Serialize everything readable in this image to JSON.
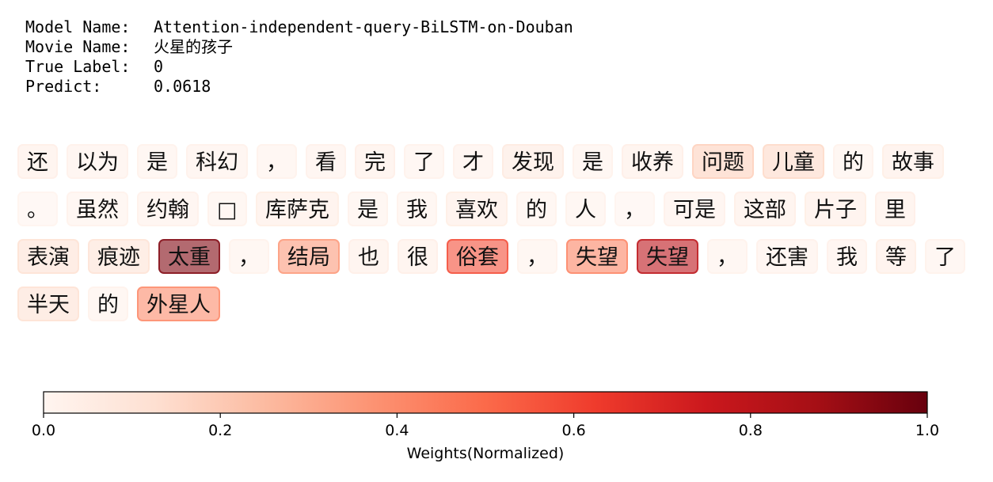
{
  "meta": {
    "model_name_key": "Model Name:",
    "model_name": "Attention-independent-query-BiLSTM-on-Douban",
    "movie_name_key": "Movie Name:",
    "movie_name": "火星的孩子",
    "true_label_key": "True Label:",
    "true_label": "0",
    "predict_key": "Predict:",
    "predict": "0.0618"
  },
  "chart_data": {
    "type": "heatmap",
    "colormap": "Reds",
    "colorbar": {
      "label": "Weights(Normalized)",
      "range": [
        0.0,
        1.0
      ],
      "ticks": [
        0.0,
        0.2,
        0.4,
        0.6,
        0.8,
        1.0
      ],
      "tick_labels": [
        "0.0",
        "0.2",
        "0.4",
        "0.6",
        "0.8",
        "1.0"
      ]
    },
    "tokens": [
      {
        "text": "还",
        "weight": 0.04
      },
      {
        "text": "以为",
        "weight": 0.03
      },
      {
        "text": "是",
        "weight": 0.02
      },
      {
        "text": "科幻",
        "weight": 0.03
      },
      {
        "text": "，",
        "weight": 0.02
      },
      {
        "text": "看",
        "weight": 0.03
      },
      {
        "text": "完",
        "weight": 0.04
      },
      {
        "text": "了",
        "weight": 0.02
      },
      {
        "text": "才",
        "weight": 0.03
      },
      {
        "text": "发现",
        "weight": 0.07
      },
      {
        "text": "是",
        "weight": 0.02
      },
      {
        "text": "收养",
        "weight": 0.04
      },
      {
        "text": "问题",
        "weight": 0.18
      },
      {
        "text": "儿童",
        "weight": 0.15
      },
      {
        "text": "的",
        "weight": 0.02
      },
      {
        "text": "故事",
        "weight": 0.05
      },
      {
        "text": "。",
        "weight": 0.01
      },
      {
        "text": "虽然",
        "weight": 0.02
      },
      {
        "text": "约翰",
        "weight": 0.03
      },
      {
        "text": "□",
        "weight": 0.02
      },
      {
        "text": "库萨克",
        "weight": 0.05
      },
      {
        "text": "是",
        "weight": 0.02
      },
      {
        "text": "我",
        "weight": 0.02
      },
      {
        "text": "喜欢",
        "weight": 0.05
      },
      {
        "text": "的",
        "weight": 0.02
      },
      {
        "text": "人",
        "weight": 0.02
      },
      {
        "text": "，",
        "weight": 0.01
      },
      {
        "text": "可是",
        "weight": 0.03
      },
      {
        "text": "这部",
        "weight": 0.04
      },
      {
        "text": "片子",
        "weight": 0.05
      },
      {
        "text": "里",
        "weight": 0.04
      },
      {
        "text": "表演",
        "weight": 0.12
      },
      {
        "text": "痕迹",
        "weight": 0.11
      },
      {
        "text": "太重",
        "weight": 0.95
      },
      {
        "text": "，",
        "weight": 0.02
      },
      {
        "text": "结局",
        "weight": 0.35
      },
      {
        "text": "也",
        "weight": 0.04
      },
      {
        "text": "很",
        "weight": 0.04
      },
      {
        "text": "俗套",
        "weight": 0.58
      },
      {
        "text": "，",
        "weight": 0.02
      },
      {
        "text": "失望",
        "weight": 0.42
      },
      {
        "text": "失望",
        "weight": 0.8
      },
      {
        "text": "，",
        "weight": 0.02
      },
      {
        "text": "还害",
        "weight": 0.03
      },
      {
        "text": "我",
        "weight": 0.03
      },
      {
        "text": "等",
        "weight": 0.05
      },
      {
        "text": "了",
        "weight": 0.02
      },
      {
        "text": "半天",
        "weight": 0.12
      },
      {
        "text": "的",
        "weight": 0.02
      },
      {
        "text": "外星人",
        "weight": 0.4
      }
    ]
  }
}
